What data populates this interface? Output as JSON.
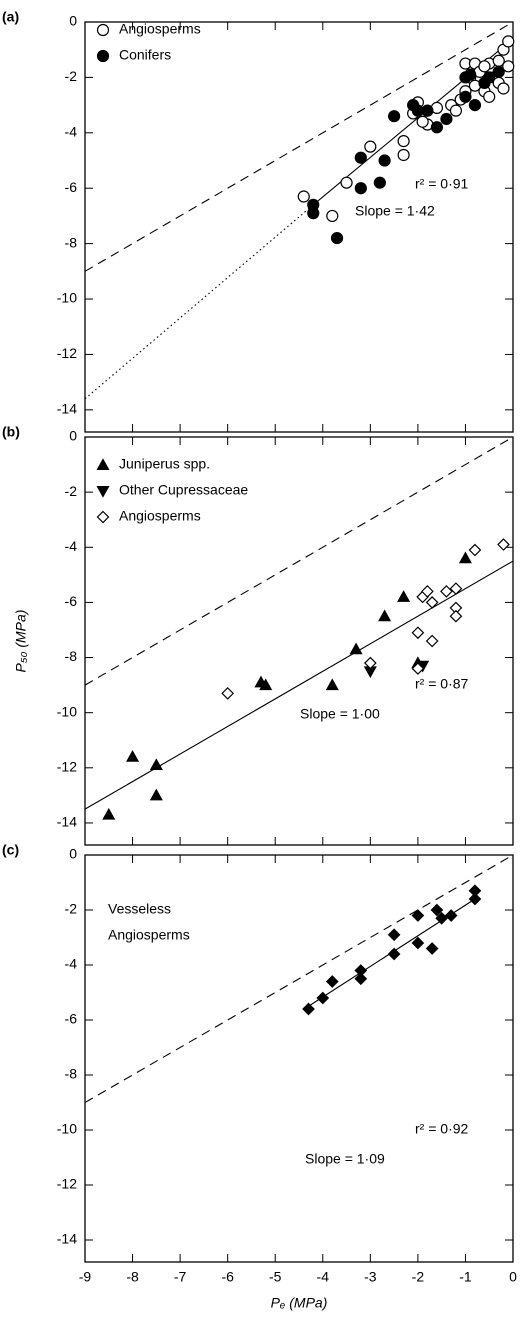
{
  "chart_data": [
    {
      "type": "scatter",
      "panel_label": "(a)",
      "xlim": [
        -9,
        0
      ],
      "ylim": [
        -14.8,
        0
      ],
      "xticks": [
        -9,
        -8,
        -7,
        -6,
        -5,
        -4,
        -3,
        -2,
        -1,
        0
      ],
      "yticks": [
        0,
        -2,
        -4,
        -6,
        -8,
        -10,
        -12,
        -14
      ],
      "legend": "upper left",
      "r2_label": "r² = 0·91",
      "slope_label": "Slope = 1·42",
      "lines": [
        {
          "style": "dashed",
          "x": [
            -9,
            0
          ],
          "y": [
            -9,
            0
          ]
        },
        {
          "style": "solid",
          "x": [
            -4.2,
            -0.1
          ],
          "y": [
            -6.6,
            -0.75
          ]
        },
        {
          "style": "dotted",
          "x": [
            -9,
            -4.2
          ],
          "y": [
            -13.6,
            -6.6
          ]
        }
      ],
      "series": [
        {
          "name": "Angiosperms",
          "marker": "circle",
          "filled": false,
          "color": "#000000",
          "x": [
            -4.4,
            -3.8,
            -3.5,
            -3.0,
            -2.3,
            -2.3,
            -2.1,
            -1.8,
            -1.6,
            -1.3,
            -1.2,
            -1.1,
            -1.0,
            -1.0,
            -0.9,
            -0.8,
            -0.7,
            -0.6,
            -0.5,
            -0.5,
            -0.4,
            -0.3,
            -0.3,
            -0.2,
            -0.1,
            -0.1,
            -0.2,
            -0.6,
            -0.8,
            -1.9,
            -2.0
          ],
          "y": [
            -6.3,
            -7.0,
            -5.8,
            -4.5,
            -4.3,
            -4.8,
            -3.3,
            -3.7,
            -3.1,
            -3.0,
            -3.2,
            -2.8,
            -2.5,
            -1.5,
            -2.0,
            -1.5,
            -1.8,
            -2.5,
            -2.7,
            -1.5,
            -2.0,
            -1.4,
            -2.2,
            -1.0,
            -1.6,
            -0.7,
            -2.4,
            -1.6,
            -2.3,
            -3.6,
            -2.9
          ]
        },
        {
          "name": "Conifers",
          "marker": "circle",
          "filled": true,
          "color": "#000000",
          "x": [
            -4.2,
            -4.2,
            -3.7,
            -3.2,
            -3.2,
            -2.8,
            -2.7,
            -2.5,
            -2.0,
            -2.1,
            -1.8,
            -1.6,
            -1.4,
            -1.0,
            -1.0,
            -0.8,
            -0.6,
            -0.5,
            -0.3,
            -0.9
          ],
          "y": [
            -6.6,
            -6.9,
            -7.8,
            -4.9,
            -6.0,
            -5.8,
            -5.0,
            -3.4,
            -3.2,
            -3.0,
            -3.2,
            -3.8,
            -3.5,
            -2.0,
            -2.7,
            -3.0,
            -2.2,
            -2.0,
            -1.8,
            -1.9
          ]
        }
      ]
    },
    {
      "type": "scatter",
      "panel_label": "(b)",
      "xlim": [
        -9,
        0
      ],
      "ylim": [
        -14.8,
        0
      ],
      "xticks": [
        -9,
        -8,
        -7,
        -6,
        -5,
        -4,
        -3,
        -2,
        -1,
        0
      ],
      "yticks": [
        0,
        -2,
        -4,
        -6,
        -8,
        -10,
        -12,
        -14
      ],
      "ylabel": "P₅₀ (MPa)",
      "legend": "upper left",
      "r2_label": "r² = 0·87",
      "slope_label": "Slope = 1·00",
      "lines": [
        {
          "style": "dashed",
          "x": [
            -9,
            0
          ],
          "y": [
            -9,
            0
          ]
        },
        {
          "style": "solid",
          "x": [
            -9,
            0
          ],
          "y": [
            -13.5,
            -4.5
          ]
        }
      ],
      "series": [
        {
          "name": "Juniperus spp.",
          "marker": "triangle-up",
          "filled": true,
          "color": "#000000",
          "x": [
            -8.5,
            -8.0,
            -7.5,
            -7.5,
            -5.3,
            -5.2,
            -3.8,
            -3.3,
            -2.7,
            -2.3,
            -2.0,
            -1.0
          ],
          "y": [
            -13.7,
            -11.6,
            -11.9,
            -13.0,
            -8.9,
            -9.0,
            -9.0,
            -7.7,
            -6.5,
            -5.8,
            -8.2,
            -4.4
          ]
        },
        {
          "name": "Other Cupressaceae",
          "marker": "triangle-down",
          "filled": true,
          "color": "#000000",
          "x": [
            -3.0,
            -1.9
          ],
          "y": [
            -8.5,
            -8.3
          ]
        },
        {
          "name": "Angiosperms",
          "marker": "diamond",
          "filled": false,
          "color": "#000000",
          "x": [
            -6.0,
            -3.0,
            -2.0,
            -2.0,
            -1.9,
            -1.8,
            -1.7,
            -1.7,
            -1.4,
            -1.2,
            -1.2,
            -1.2,
            -0.8,
            -0.2
          ],
          "y": [
            -9.3,
            -8.2,
            -7.1,
            -8.4,
            -5.8,
            -5.6,
            -6.0,
            -7.4,
            -5.6,
            -5.5,
            -6.2,
            -6.5,
            -4.1,
            -3.9
          ]
        }
      ]
    },
    {
      "type": "scatter",
      "panel_label": "(c)",
      "xlim": [
        -9,
        0
      ],
      "ylim": [
        -14.8,
        0
      ],
      "xticks": [
        -9,
        -8,
        -7,
        -6,
        -5,
        -4,
        -3,
        -2,
        -1,
        0
      ],
      "yticks": [
        0,
        -2,
        -4,
        -6,
        -8,
        -10,
        -12,
        -14
      ],
      "xlabel": "Pₑ (MPa)",
      "annotation_lines": [
        "Vesseless",
        "Angiosperms"
      ],
      "r2_label": "r² = 0·92",
      "slope_label": "Slope = 1·09",
      "lines": [
        {
          "style": "dashed",
          "x": [
            -9,
            0
          ],
          "y": [
            -9,
            0
          ]
        },
        {
          "style": "solid",
          "x": [
            -4.3,
            -0.8
          ],
          "y": [
            -5.5,
            -1.6
          ]
        }
      ],
      "series": [
        {
          "marker": "diamond",
          "filled": true,
          "color": "#000000",
          "x": [
            -4.3,
            -4.0,
            -3.8,
            -3.2,
            -3.2,
            -2.5,
            -2.5,
            -2.0,
            -2.0,
            -1.7,
            -1.6,
            -1.5,
            -1.3,
            -0.8,
            -0.8
          ],
          "y": [
            -5.6,
            -5.2,
            -4.6,
            -4.2,
            -4.5,
            -3.6,
            -2.9,
            -3.2,
            -2.2,
            -3.4,
            -2.0,
            -2.3,
            -2.2,
            -1.6,
            -1.3
          ]
        }
      ]
    }
  ]
}
